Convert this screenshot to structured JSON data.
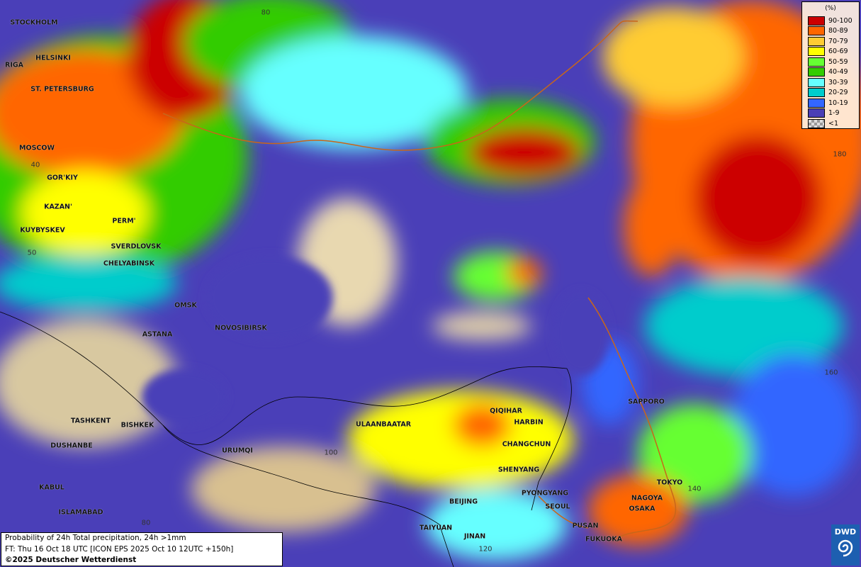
{
  "legend": {
    "unit": "(%)",
    "items": [
      {
        "label": "90-100",
        "color": "#cc0000"
      },
      {
        "label": "80-89",
        "color": "#ff6600"
      },
      {
        "label": "70-79",
        "color": "#ffcc33"
      },
      {
        "label": "60-69",
        "color": "#ffff00"
      },
      {
        "label": "50-59",
        "color": "#66ff33"
      },
      {
        "label": "40-49",
        "color": "#33cc00"
      },
      {
        "label": "30-39",
        "color": "#66ffff"
      },
      {
        "label": "20-29",
        "color": "#00cccc"
      },
      {
        "label": "10-19",
        "color": "#3366ff"
      },
      {
        "label": "1-9",
        "color": "#4b3fb5"
      },
      {
        "label": "<1",
        "color": "#bbbbbb"
      }
    ]
  },
  "info": {
    "line1": "Probability of 24h Total precipitation, 24h >1mm",
    "line2": "FT: Thu 16 Oct 18 UTC [ICON EPS 2025 Oct 10 12UTC +150h]",
    "line3": "©2025 Deutscher Wetterdienst"
  },
  "logo": {
    "text": "DWD"
  },
  "cities": [
    "STOCKHOLM",
    "HELSINKI",
    "RIGA",
    "ST. PETERSBURG",
    "MOSCOW",
    "GOR'KIY",
    "KAZAN'",
    "PERM'",
    "KUYBYSKEV",
    "SVERDLOVSK",
    "CHELYABINSK",
    "OMSK",
    "ASTANA",
    "NOVOSIBIRSK",
    "TASHKENT",
    "BISHKEK",
    "DUSHANBE",
    "URUMQI",
    "KABUL",
    "ISLAMABAD",
    "ULAANBAATAR",
    "QIQIHAR",
    "HARBIN",
    "CHANGCHUN",
    "SHENYANG",
    "BEIJING",
    "PYONGYANG",
    "SEOUL",
    "TAIYUAN",
    "JINAN",
    "PUSAN",
    "FUKUOKA",
    "SAPPORO",
    "TOKYO",
    "NAGOYA",
    "OSAKA"
  ],
  "grid_labels": [
    "80",
    "40",
    "50",
    "180",
    "160",
    "100",
    "80",
    "140",
    "120"
  ]
}
